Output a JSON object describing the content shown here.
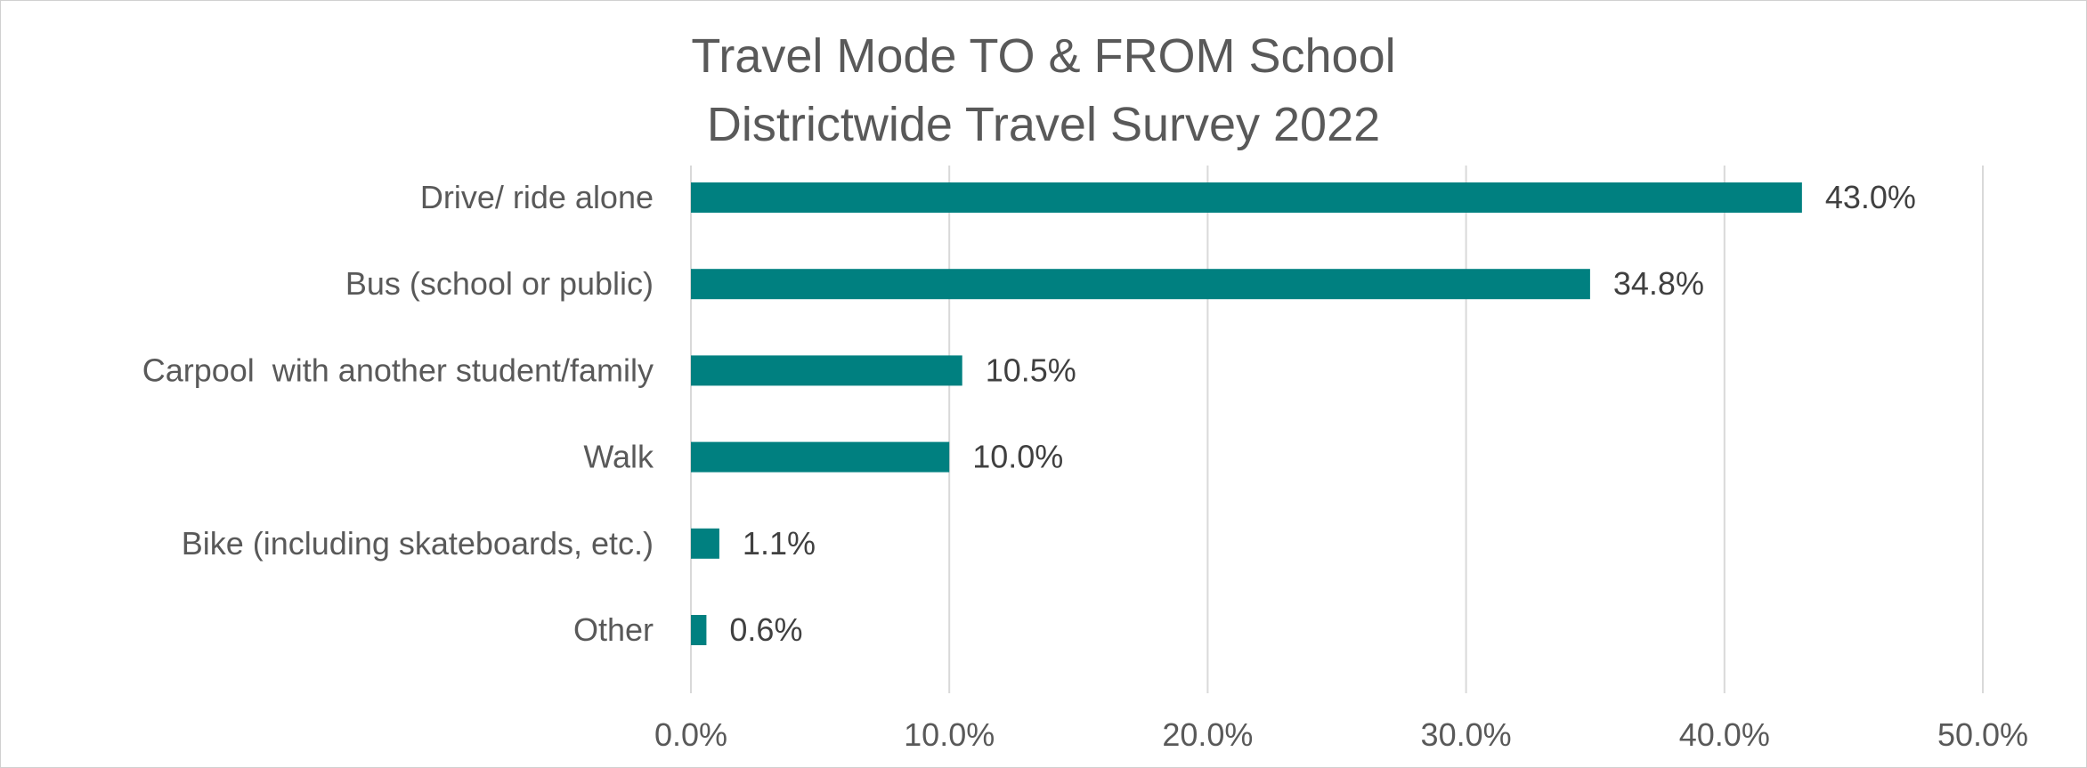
{
  "chart_data": {
    "type": "bar",
    "orientation": "horizontal",
    "title": [
      "Travel Mode TO & FROM School",
      "Districtwide Travel Survey 2022"
    ],
    "categories": [
      "Drive/ ride alone",
      "Bus (school or public)",
      "Carpool  with another student/family",
      "Walk",
      "Bike (including skateboards, etc.)",
      "Other"
    ],
    "values": [
      43.0,
      34.8,
      10.5,
      10.0,
      1.1,
      0.6
    ],
    "value_labels": [
      "43.0%",
      "34.8%",
      "10.5%",
      "10.0%",
      "1.1%",
      "0.6%"
    ],
    "xlim": [
      0,
      50
    ],
    "x_ticks": [
      0,
      10,
      20,
      30,
      40,
      50
    ],
    "x_tick_labels": [
      "0.0%",
      "10.0%",
      "20.0%",
      "30.0%",
      "40.0%",
      "50.0%"
    ],
    "xlabel": "",
    "ylabel": "",
    "grid": "vertical",
    "legend": "none",
    "bar_color": "#008080"
  }
}
